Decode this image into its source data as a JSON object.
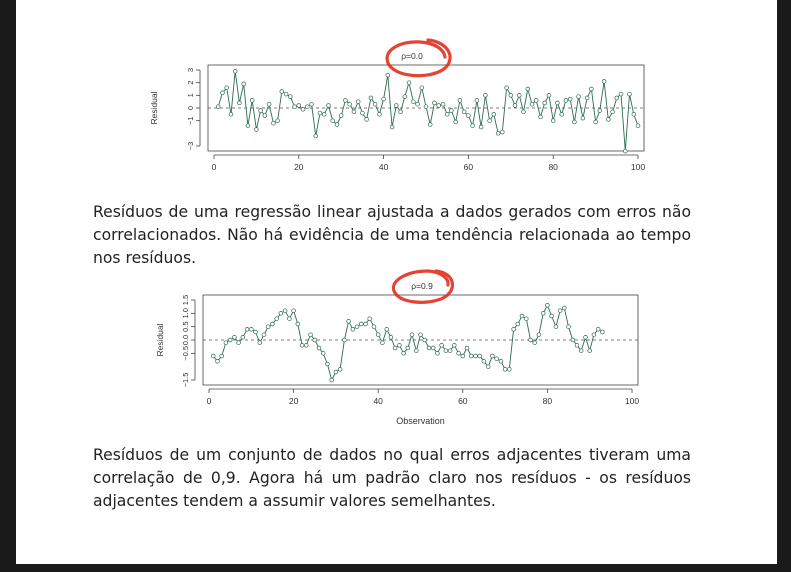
{
  "slide": {
    "caption_1": "Resíduos de uma regressão linear ajustada a dados gerados com erros não correlacionados. Não há evidência de uma tendência relacionada ao tempo nos resíduos.",
    "caption_2": "Resíduos de um conjunto de dados no qual erros adjacentes tiveram uma correlação de 0,9. Agora há um padrão claro nos resíduos - os resíduos adjacentes tendem a assumir valores semelhantes."
  },
  "colors": {
    "line": "#2e6b4c",
    "points": "#2e6b4c",
    "annotation": "#e0301e",
    "axis": "#444444"
  },
  "chart_data": [
    {
      "type": "line",
      "title": "ρ=0.0",
      "xlabel": "",
      "ylabel": "Residual",
      "xlim": [
        0,
        100
      ],
      "ylim": [
        -3,
        3
      ],
      "x_ticks": [
        "0",
        "20",
        "40",
        "60",
        "80",
        "100"
      ],
      "y_ticks": [
        "−3",
        "−1",
        "0",
        "1",
        "2",
        "3"
      ],
      "reference_line": 0,
      "markers": "open-circle",
      "series": [
        {
          "values": [
            0.1,
            1.2,
            1.6,
            -0.5,
            2.9,
            0.4,
            1.9,
            -1.4,
            0.6,
            -1.7,
            -0.2,
            -0.6,
            0.3,
            -1.2,
            -1.0,
            1.3,
            1.1,
            0.9,
            0.1,
            0.2,
            -0.1,
            0.1,
            0.3,
            -2.2,
            -0.4,
            -0.5,
            0.2,
            -1.0,
            -1.3,
            -0.6,
            0.6,
            0.3,
            -0.3,
            0.5,
            -0.4,
            -0.9,
            0.8,
            0.3,
            -0.5,
            0.7,
            2.6,
            -1.5,
            0.2,
            -0.3,
            0.9,
            2.0,
            0.5,
            0.3,
            1.6,
            0.1,
            -1.3,
            0.4,
            0.2,
            0.3,
            -0.5,
            -0.2,
            -1.1,
            0.6,
            -0.3,
            -0.6,
            -1.4,
            0.6,
            -1.5,
            1.0,
            -1.0,
            -0.5,
            -2.0,
            -1.9,
            1.6,
            1.0,
            0.2,
            1.0,
            -0.3,
            1.5,
            0.3,
            0.6,
            -0.7,
            0.4,
            1.0,
            -1.0,
            0.4,
            -0.5,
            0.6,
            0.7,
            -1.1,
            0.9,
            -0.8,
            0.8,
            1.5,
            -1.1,
            -0.2,
            2.1,
            -0.9,
            -0.3,
            0.8,
            1.1,
            -3.4,
            1.1,
            -0.5,
            -1.4
          ]
        }
      ]
    },
    {
      "type": "line",
      "title": "ρ=0.9",
      "xlabel": "Observation",
      "ylabel": "Residual",
      "xlim": [
        0,
        100
      ],
      "ylim": [
        -1.5,
        1.5
      ],
      "x_ticks": [
        "0",
        "20",
        "40",
        "60",
        "80",
        "100"
      ],
      "y_ticks": [
        "−1.5",
        "−0.5",
        "0.0",
        "0.5",
        "1.0",
        "1.5"
      ],
      "reference_line": 0,
      "markers": "open-circle",
      "series": [
        {
          "values": [
            -0.6,
            -0.8,
            -0.6,
            -0.1,
            0.0,
            0.1,
            -0.1,
            0.1,
            0.4,
            0.4,
            0.3,
            -0.1,
            0.2,
            0.5,
            0.6,
            0.8,
            1.0,
            1.1,
            0.8,
            1.1,
            0.6,
            -0.2,
            -0.2,
            0.2,
            0.0,
            -0.3,
            -0.5,
            -0.9,
            -1.5,
            -1.2,
            -1.1,
            0.0,
            0.7,
            0.4,
            0.5,
            0.6,
            0.6,
            0.8,
            0.5,
            0.2,
            -0.1,
            0.4,
            0.1,
            -0.3,
            -0.2,
            -0.5,
            -0.3,
            0.2,
            -0.4,
            0.2,
            0.0,
            -0.3,
            -0.3,
            -0.5,
            -0.2,
            -0.4,
            -0.4,
            -0.2,
            -0.5,
            -0.6,
            -0.3,
            -0.6,
            -0.6,
            -0.6,
            -0.8,
            -1.0,
            -0.6,
            -0.7,
            -0.8,
            -1.1,
            -1.1,
            0.4,
            0.6,
            0.9,
            0.8,
            0.0,
            -0.1,
            0.2,
            1.0,
            1.3,
            0.9,
            0.5,
            1.1,
            1.2,
            0.5,
            0.0,
            -0.2,
            -0.4,
            0.1,
            -0.4,
            0.2,
            0.4,
            0.3
          ]
        }
      ]
    }
  ]
}
